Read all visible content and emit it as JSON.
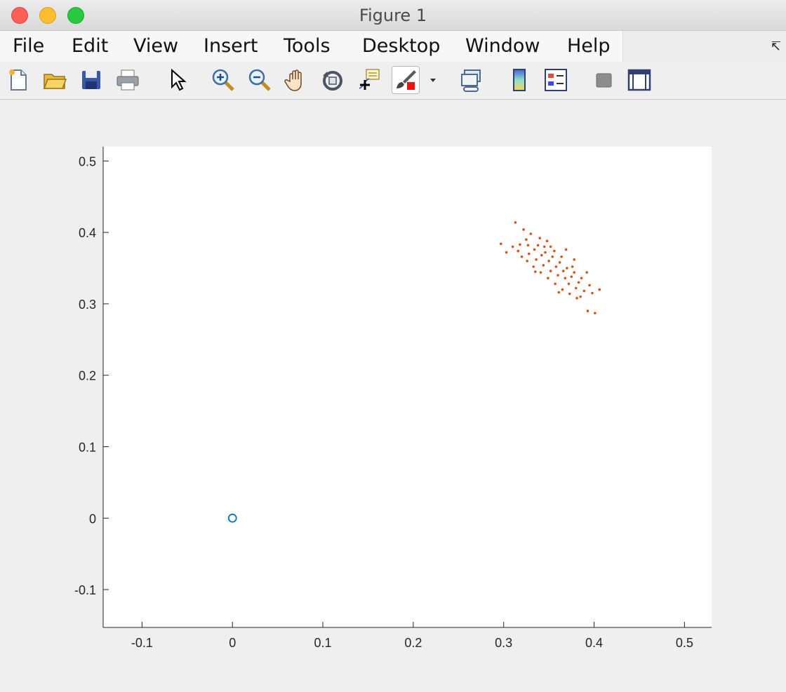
{
  "window": {
    "title": "Figure 1"
  },
  "menu": {
    "items": [
      "File",
      "Edit",
      "View",
      "Insert",
      "Tools",
      "Desktop",
      "Window",
      "Help"
    ]
  },
  "toolbar": {
    "tools": [
      {
        "name": "new-figure-icon"
      },
      {
        "name": "open-file-icon"
      },
      {
        "name": "save-icon"
      },
      {
        "name": "print-icon"
      },
      {
        "name": "edit-plot-arrow-icon"
      },
      {
        "name": "zoom-in-icon"
      },
      {
        "name": "zoom-out-icon"
      },
      {
        "name": "pan-hand-icon"
      },
      {
        "name": "rotate-3d-icon"
      },
      {
        "name": "data-cursor-icon"
      },
      {
        "name": "brush-icon"
      },
      {
        "name": "link-plot-icon"
      },
      {
        "name": "colorbar-icon"
      },
      {
        "name": "legend-icon"
      },
      {
        "name": "hide-plot-tools-icon"
      },
      {
        "name": "show-plot-tools-icon"
      }
    ]
  },
  "chart_data": {
    "type": "scatter",
    "title": "",
    "xlabel": "",
    "ylabel": "",
    "xlim": [
      -0.143,
      0.53
    ],
    "ylim": [
      -0.153,
      0.52
    ],
    "xticks": [
      "-0.1",
      "0",
      "0.1",
      "0.2",
      "0.3",
      "0.4",
      "0.5"
    ],
    "xtick_values": [
      -0.1,
      0,
      0.1,
      0.2,
      0.3,
      0.4,
      0.5
    ],
    "yticks": [
      "-0.1",
      "0",
      "0.1",
      "0.2",
      "0.3",
      "0.4",
      "0.5"
    ],
    "ytick_values": [
      -0.1,
      0,
      0.1,
      0.2,
      0.3,
      0.4,
      0.5
    ],
    "grid": false,
    "series": [
      {
        "marker": "circle-open",
        "color": "#0072bd",
        "points": [
          [
            0,
            0
          ]
        ]
      },
      {
        "marker": "dot",
        "color": "#d95319",
        "points": [
          [
            0.313,
            0.414
          ],
          [
            0.322,
            0.404
          ],
          [
            0.297,
            0.384
          ],
          [
            0.303,
            0.372
          ],
          [
            0.406,
            0.32
          ],
          [
            0.393,
            0.29
          ],
          [
            0.401,
            0.287
          ],
          [
            0.385,
            0.31
          ],
          [
            0.392,
            0.344
          ],
          [
            0.378,
            0.362
          ],
          [
            0.369,
            0.376
          ],
          [
            0.352,
            0.38
          ],
          [
            0.34,
            0.392
          ],
          [
            0.33,
            0.398
          ],
          [
            0.325,
            0.39
          ],
          [
            0.318,
            0.383
          ],
          [
            0.316,
            0.374
          ],
          [
            0.32,
            0.366
          ],
          [
            0.326,
            0.36
          ],
          [
            0.333,
            0.352
          ],
          [
            0.341,
            0.344
          ],
          [
            0.349,
            0.336
          ],
          [
            0.357,
            0.328
          ],
          [
            0.365,
            0.32
          ],
          [
            0.373,
            0.314
          ],
          [
            0.381,
            0.308
          ],
          [
            0.389,
            0.318
          ],
          [
            0.383,
            0.33
          ],
          [
            0.375,
            0.338
          ],
          [
            0.366,
            0.346
          ],
          [
            0.358,
            0.352
          ],
          [
            0.35,
            0.36
          ],
          [
            0.342,
            0.368
          ],
          [
            0.334,
            0.376
          ],
          [
            0.327,
            0.382
          ],
          [
            0.346,
            0.372
          ],
          [
            0.354,
            0.366
          ],
          [
            0.362,
            0.358
          ],
          [
            0.37,
            0.35
          ],
          [
            0.378,
            0.344
          ],
          [
            0.386,
            0.336
          ],
          [
            0.395,
            0.326
          ],
          [
            0.398,
            0.315
          ],
          [
            0.36,
            0.34
          ],
          [
            0.344,
            0.354
          ],
          [
            0.336,
            0.362
          ],
          [
            0.328,
            0.37
          ],
          [
            0.338,
            0.382
          ],
          [
            0.348,
            0.388
          ],
          [
            0.31,
            0.38
          ],
          [
            0.356,
            0.374
          ],
          [
            0.364,
            0.366
          ],
          [
            0.372,
            0.328
          ],
          [
            0.38,
            0.322
          ],
          [
            0.352,
            0.346
          ],
          [
            0.335,
            0.345
          ],
          [
            0.368,
            0.336
          ],
          [
            0.361,
            0.316
          ],
          [
            0.376,
            0.352
          ],
          [
            0.345,
            0.38
          ]
        ]
      }
    ]
  }
}
